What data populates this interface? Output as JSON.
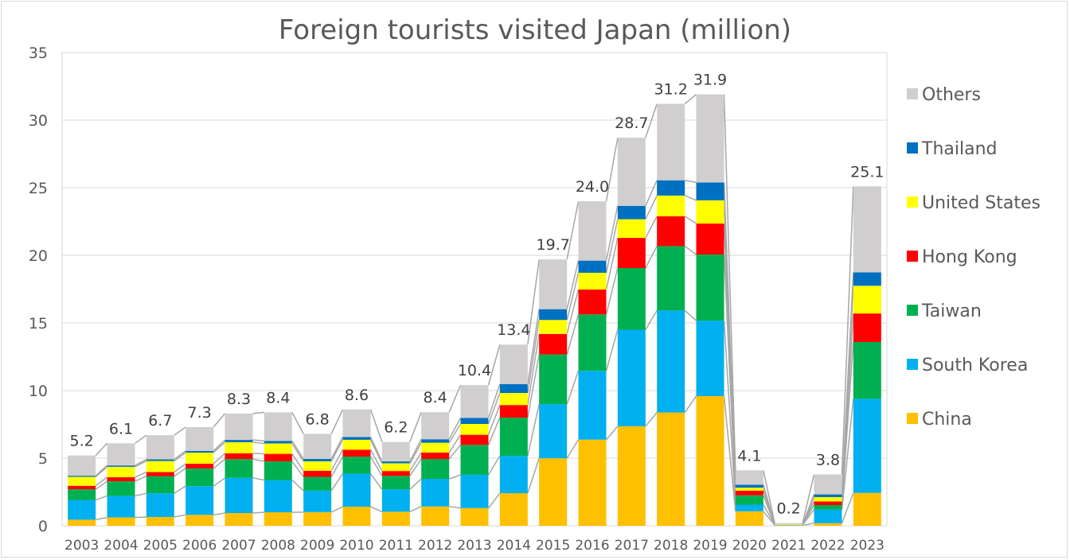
{
  "chart_data": {
    "type": "bar",
    "stacked": true,
    "title": "Foreign tourists visited Japan (million)",
    "xlabel": "",
    "ylabel": "",
    "ylim": [
      0,
      35
    ],
    "yticks": [
      0,
      5,
      10,
      15,
      20,
      25,
      30,
      35
    ],
    "grid": true,
    "legend_position": "right",
    "categories": [
      "2003",
      "2004",
      "2005",
      "2006",
      "2007",
      "2008",
      "2009",
      "2010",
      "2011",
      "2012",
      "2013",
      "2014",
      "2015",
      "2016",
      "2017",
      "2018",
      "2019",
      "2020",
      "2021",
      "2022",
      "2023"
    ],
    "totals": [
      5.2,
      6.1,
      6.7,
      7.3,
      8.3,
      8.4,
      6.8,
      8.6,
      6.2,
      8.4,
      10.4,
      13.4,
      19.7,
      24.0,
      28.7,
      31.2,
      31.9,
      4.1,
      0.2,
      3.8,
      25.1
    ],
    "total_labels": [
      "5.2",
      "6.1",
      "6.7",
      "7.3",
      "8.3",
      "8.4",
      "6.8",
      "8.6",
      "6.2",
      "8.4",
      "10.4",
      "13.4",
      "19.7",
      "24.0",
      "28.7",
      "31.2",
      "31.9",
      "4.1",
      "0.2",
      "3.8",
      "25.1"
    ],
    "series": [
      {
        "name": "China",
        "color": "#ffc000",
        "values": [
          0.45,
          0.62,
          0.65,
          0.81,
          0.94,
          1.0,
          1.01,
          1.41,
          1.04,
          1.43,
          1.31,
          2.41,
          4.99,
          6.37,
          7.36,
          8.38,
          9.59,
          1.07,
          0.04,
          0.19,
          2.43
        ]
      },
      {
        "name": "South Korea",
        "color": "#00b0f0",
        "values": [
          1.46,
          1.59,
          1.75,
          2.12,
          2.6,
          2.38,
          1.59,
          2.44,
          1.66,
          2.04,
          2.46,
          2.76,
          4.0,
          5.09,
          7.14,
          7.54,
          5.58,
          0.49,
          0.02,
          1.01,
          6.96
        ]
      },
      {
        "name": "Taiwan",
        "color": "#00b050",
        "values": [
          0.79,
          1.08,
          1.27,
          1.31,
          1.39,
          1.39,
          1.02,
          1.27,
          0.99,
          1.47,
          2.21,
          2.83,
          3.68,
          4.17,
          4.56,
          4.76,
          4.89,
          0.69,
          0.01,
          0.33,
          4.2
        ]
      },
      {
        "name": "Hong Kong",
        "color": "#ff0000",
        "values": [
          0.26,
          0.3,
          0.3,
          0.35,
          0.43,
          0.55,
          0.45,
          0.51,
          0.36,
          0.48,
          0.75,
          0.93,
          1.52,
          1.84,
          2.23,
          2.21,
          2.29,
          0.35,
          0.0,
          0.27,
          2.11
        ]
      },
      {
        "name": "United States",
        "color": "#ffff00",
        "values": [
          0.66,
          0.77,
          0.82,
          0.82,
          0.82,
          0.77,
          0.7,
          0.73,
          0.57,
          0.72,
          0.8,
          0.89,
          1.03,
          1.24,
          1.38,
          1.53,
          1.72,
          0.22,
          0.02,
          0.32,
          2.05
        ]
      },
      {
        "name": "Thailand",
        "color": "#0070c0",
        "values": [
          0.08,
          0.1,
          0.12,
          0.13,
          0.17,
          0.19,
          0.18,
          0.21,
          0.14,
          0.26,
          0.45,
          0.66,
          0.8,
          0.9,
          0.99,
          1.13,
          1.32,
          0.22,
          0.0,
          0.2,
          0.99
        ]
      },
      {
        "name": "Others",
        "color": "#d0cece",
        "values": [
          1.5,
          1.64,
          1.79,
          1.76,
          1.95,
          2.11,
          1.85,
          2.03,
          1.44,
          2.0,
          2.42,
          2.92,
          3.68,
          4.39,
          5.04,
          5.65,
          6.51,
          1.06,
          0.11,
          1.48,
          6.36
        ]
      }
    ]
  }
}
